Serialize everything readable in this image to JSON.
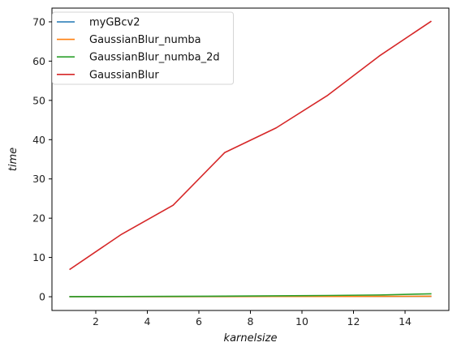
{
  "chart_data": {
    "type": "line",
    "xlabel": "karnelsize",
    "ylabel": "time",
    "xlim": [
      0.3,
      15.7
    ],
    "ylim": [
      -3.5,
      73.5
    ],
    "xticks": [
      2,
      4,
      6,
      8,
      10,
      12,
      14
    ],
    "yticks": [
      0,
      10,
      20,
      30,
      40,
      50,
      60,
      70
    ],
    "grid": false,
    "legend_position": "top-left",
    "x": [
      1,
      3,
      5,
      7,
      9,
      11,
      13,
      15
    ],
    "series": [
      {
        "name": "myGBcv2",
        "color": "#1f77b4",
        "values": [
          0.02,
          0.03,
          0.04,
          0.05,
          0.06,
          0.07,
          0.08,
          0.09
        ]
      },
      {
        "name": "GaussianBlur_numba",
        "color": "#ff7f0e",
        "values": [
          0.01,
          0.02,
          0.03,
          0.04,
          0.06,
          0.08,
          0.1,
          0.12
        ]
      },
      {
        "name": "GaussianBlur_numba_2d",
        "color": "#2ca02c",
        "values": [
          0.03,
          0.06,
          0.1,
          0.15,
          0.22,
          0.32,
          0.45,
          0.75
        ]
      },
      {
        "name": "GaussianBlur",
        "color": "#d62728",
        "values": [
          7.0,
          15.9,
          23.3,
          36.7,
          43.0,
          51.3,
          61.3,
          70.1
        ]
      }
    ]
  }
}
